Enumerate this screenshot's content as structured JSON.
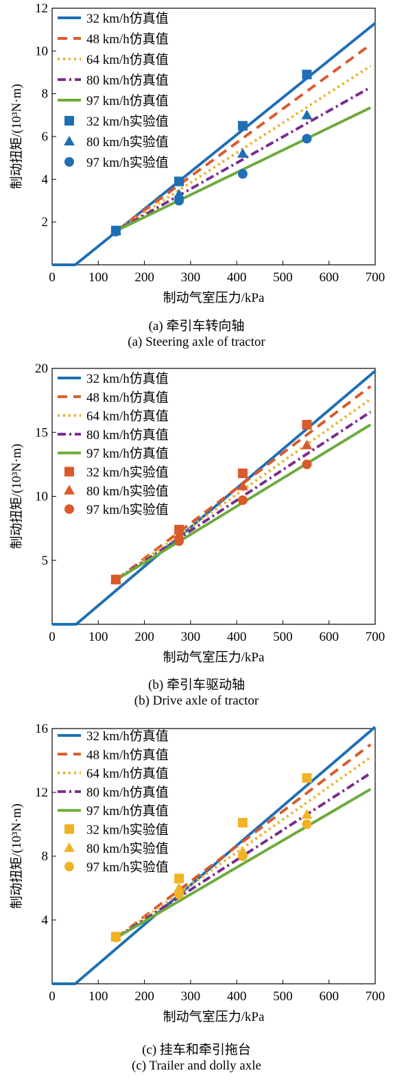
{
  "chart_data": [
    {
      "type": "line",
      "caption_cn": "(a) 牵引车转向轴",
      "caption_en": "(a) Steering axle of tractor",
      "xlabel": "制动气室压力/kPa",
      "ylabel": "制动扭矩/(10³N·m)",
      "xlim": [
        0,
        700
      ],
      "ylim": [
        0,
        12
      ],
      "xticks": [
        0,
        100,
        200,
        300,
        400,
        500,
        600,
        700
      ],
      "yticks": [
        2,
        4,
        6,
        8,
        10,
        12
      ],
      "marker_color": "#1f6fb5",
      "series": [
        {
          "name": "32 km/h仿真值",
          "style": "solid",
          "color": "#1f6fb5",
          "x": [
            0,
            50,
            700
          ],
          "y": [
            0,
            0,
            11.3
          ]
        },
        {
          "name": "48 km/h仿真值",
          "style": "dash",
          "color": "#d95a2b",
          "x": [
            140,
            690
          ],
          "y": [
            1.6,
            10.3
          ]
        },
        {
          "name": "64 km/h仿真值",
          "style": "dot",
          "color": "#e8b32e",
          "x": [
            140,
            690
          ],
          "y": [
            1.6,
            9.3
          ]
        },
        {
          "name": "80 km/h仿真值",
          "style": "dashdot",
          "color": "#7b2b8f",
          "x": [
            140,
            690
          ],
          "y": [
            1.6,
            8.3
          ]
        },
        {
          "name": "97 km/h仿真值",
          "style": "solid",
          "color": "#6cab3c",
          "x": [
            140,
            690
          ],
          "y": [
            1.6,
            7.35
          ]
        },
        {
          "name": "32 km/h实验值",
          "marker": "square",
          "x": [
            138,
            275,
            413,
            552
          ],
          "y": [
            1.6,
            3.9,
            6.5,
            8.9
          ]
        },
        {
          "name": "80 km/h实验值",
          "marker": "triangle",
          "x": [
            138,
            275,
            413,
            552
          ],
          "y": [
            1.6,
            3.3,
            5.2,
            7.0
          ]
        },
        {
          "name": "97 km/h实验值",
          "marker": "circle",
          "x": [
            138,
            275,
            413,
            552
          ],
          "y": [
            1.55,
            3.0,
            4.25,
            5.9
          ]
        }
      ]
    },
    {
      "type": "line",
      "caption_cn": "(b) 牵引车驱动轴",
      "caption_en": "(b) Drive axle of tractor",
      "xlabel": "制动气室压力/kPa",
      "ylabel": "制动扭矩/(10³N·m)",
      "xlim": [
        0,
        700
      ],
      "ylim": [
        0,
        20
      ],
      "xticks": [
        0,
        100,
        200,
        300,
        400,
        500,
        600,
        700
      ],
      "yticks": [
        5,
        10,
        15,
        20
      ],
      "marker_color": "#d95a2b",
      "series": [
        {
          "name": "32 km/h仿真值",
          "style": "solid",
          "color": "#1f6fb5",
          "x": [
            0,
            52,
            700
          ],
          "y": [
            0,
            0,
            19.8
          ]
        },
        {
          "name": "48 km/h仿真值",
          "style": "dash",
          "color": "#d95a2b",
          "x": [
            140,
            690
          ],
          "y": [
            3.5,
            18.6
          ]
        },
        {
          "name": "64 km/h仿真值",
          "style": "dot",
          "color": "#e8b32e",
          "x": [
            140,
            690
          ],
          "y": [
            3.5,
            17.6
          ]
        },
        {
          "name": "80 km/h仿真值",
          "style": "dashdot",
          "color": "#7b2b8f",
          "x": [
            140,
            690
          ],
          "y": [
            3.5,
            16.6
          ]
        },
        {
          "name": "97 km/h仿真值",
          "style": "solid",
          "color": "#6cab3c",
          "x": [
            140,
            690
          ],
          "y": [
            3.5,
            15.6
          ]
        },
        {
          "name": "32 km/h实验值",
          "marker": "square",
          "x": [
            138,
            275,
            413,
            552
          ],
          "y": [
            3.5,
            7.4,
            11.8,
            15.6
          ]
        },
        {
          "name": "80 km/h实验值",
          "marker": "triangle",
          "x": [
            138,
            275,
            413,
            552
          ],
          "y": [
            3.5,
            7.0,
            10.8,
            14.0
          ]
        },
        {
          "name": "97 km/h实验值",
          "marker": "circle",
          "x": [
            138,
            275,
            413,
            552
          ],
          "y": [
            3.5,
            6.5,
            9.7,
            12.5
          ]
        }
      ]
    },
    {
      "type": "line",
      "caption_cn": "(c) 挂车和牵引拖台",
      "caption_en": "(c) Trailer and dolly axle",
      "xlabel": "制动气室压力/kPa",
      "ylabel": "制动扭矩/(10³N·m)",
      "xlim": [
        0,
        700
      ],
      "ylim": [
        0,
        16
      ],
      "xticks": [
        0,
        100,
        200,
        300,
        400,
        500,
        600,
        700
      ],
      "yticks": [
        4,
        8,
        12,
        16
      ],
      "marker_color": "#f0b323",
      "series": [
        {
          "name": "32 km/h仿真值",
          "style": "solid",
          "color": "#1f6fb5",
          "x": [
            0,
            50,
            700
          ],
          "y": [
            0,
            0,
            16.1
          ]
        },
        {
          "name": "48 km/h仿真值",
          "style": "dash",
          "color": "#d95a2b",
          "x": [
            140,
            690
          ],
          "y": [
            2.9,
            15.0
          ]
        },
        {
          "name": "64 km/h仿真值",
          "style": "dot",
          "color": "#e8b32e",
          "x": [
            140,
            690
          ],
          "y": [
            2.9,
            14.2
          ]
        },
        {
          "name": "80 km/h仿真值",
          "style": "dashdot",
          "color": "#7b2b8f",
          "x": [
            140,
            690
          ],
          "y": [
            2.9,
            13.2
          ]
        },
        {
          "name": "97 km/h仿真值",
          "style": "solid",
          "color": "#6cab3c",
          "x": [
            140,
            690
          ],
          "y": [
            2.9,
            12.2
          ]
        },
        {
          "name": "32 km/h实验值",
          "marker": "square",
          "x": [
            138,
            275,
            413,
            552
          ],
          "y": [
            2.95,
            6.6,
            10.1,
            12.9
          ]
        },
        {
          "name": "80 km/h实验值",
          "marker": "triangle",
          "x": [
            138,
            275,
            413,
            552
          ],
          "y": [
            2.95,
            6.0,
            8.3,
            10.6
          ]
        },
        {
          "name": "97 km/h实验值",
          "marker": "circle",
          "x": [
            138,
            275,
            413,
            552
          ],
          "y": [
            2.9,
            5.6,
            8.0,
            10.0
          ]
        }
      ]
    }
  ]
}
